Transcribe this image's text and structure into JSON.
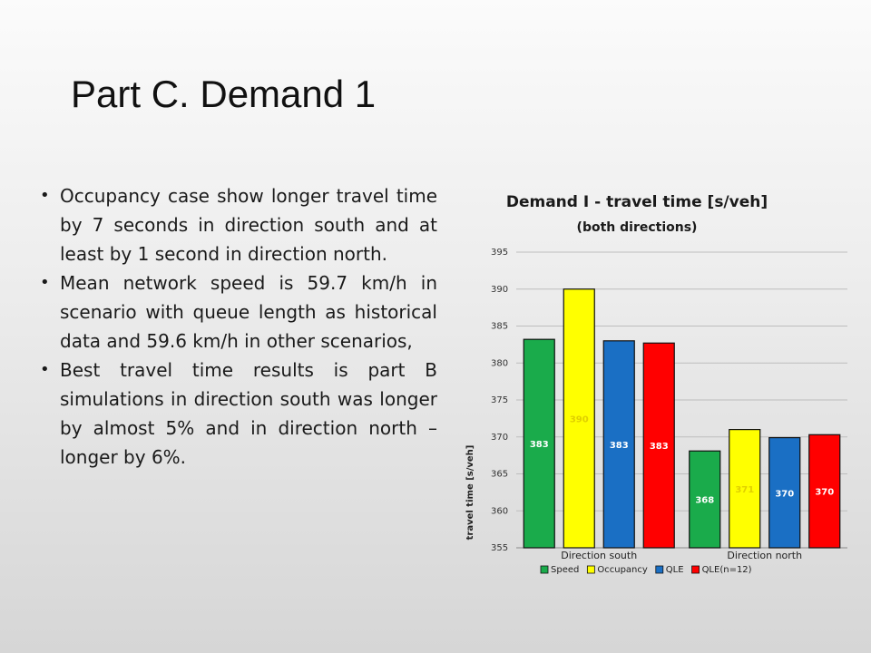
{
  "slide": {
    "title": "Part C. Demand 1",
    "bullets": [
      "Occupancy case show longer travel time by 7 seconds in direction south and at least by 1 second in direction north.",
      "Mean network speed is 59.7 km/h in scenario with queue length as historical data and 59.6 km/h in other scenarios,",
      "Best travel time results is part B simulations in direction south was longer by almost 5% and in direction north – longer by 6%."
    ]
  },
  "chart_data": {
    "type": "bar",
    "title": "Demand I - travel time  [s/veh]",
    "subtitle": "(both directions)",
    "xlabel": "",
    "ylabel": "travel time [s/veh]",
    "ylim": [
      355,
      395
    ],
    "yticks": [
      355,
      360,
      365,
      370,
      375,
      380,
      385,
      390,
      395
    ],
    "grid": true,
    "legend_position": "bottom",
    "categories": [
      "Direction south",
      "Direction north"
    ],
    "series": [
      {
        "name": "Speed",
        "color": "#1aab4b",
        "values": [
          383.2,
          368.1
        ],
        "labels": [
          "383",
          "368"
        ]
      },
      {
        "name": "Occupancy",
        "color": "#ffff00",
        "values": [
          390.0,
          371.0
        ],
        "labels": [
          "390",
          "371"
        ]
      },
      {
        "name": "QLE",
        "color": "#1a6fc4",
        "values": [
          383.0,
          369.9
        ],
        "labels": [
          "383",
          "370"
        ]
      },
      {
        "name": "QLE(n=12)",
        "color": "#ff0000",
        "values": [
          382.7,
          370.3
        ],
        "labels": [
          "383",
          "370"
        ]
      }
    ]
  }
}
